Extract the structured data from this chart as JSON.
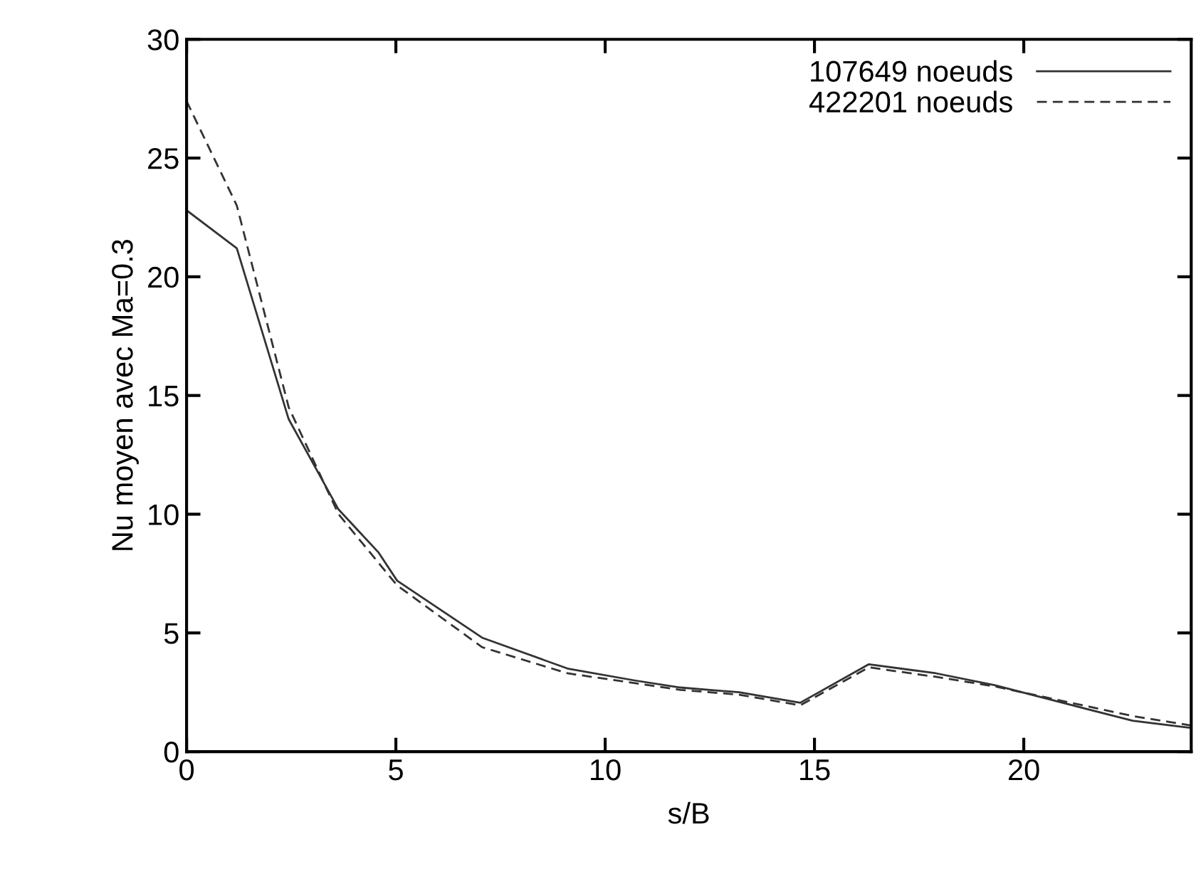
{
  "chart_data": {
    "type": "line",
    "xlabel": "s/B",
    "ylabel": "Nu moyen avec Ma=0.3",
    "xlim": [
      0,
      24
    ],
    "ylim": [
      0,
      30
    ],
    "xticks": [
      0,
      5,
      10,
      15,
      20
    ],
    "yticks": [
      0,
      5,
      10,
      15,
      20,
      25,
      30
    ],
    "grid": false,
    "legend": "top right",
    "marker": "none",
    "series": [
      {
        "name": "107649 noeuds",
        "color": "#333333",
        "line_style": "solid",
        "x": [
          0,
          1.2,
          2.44,
          3.63,
          4.58,
          5.03,
          7.06,
          9.1,
          10.7,
          11.8,
          13.2,
          14.66,
          16.3,
          17.9,
          19.3,
          22.6,
          24
        ],
        "values": [
          22.8,
          21.2,
          14.0,
          10.2,
          8.4,
          7.2,
          4.8,
          3.5,
          3.0,
          2.7,
          2.5,
          2.06,
          3.68,
          3.3,
          2.8,
          1.3,
          1.0
        ]
      },
      {
        "name": "422201 noeuds",
        "color": "#333333",
        "line_style": "dashed",
        "x": [
          0,
          1.2,
          2.44,
          3.63,
          5.03,
          7.06,
          9.1,
          11.8,
          13.2,
          14.66,
          16.3,
          17.9,
          19.3,
          22.6,
          24
        ],
        "values": [
          27.4,
          23.0,
          14.5,
          10.0,
          7.0,
          4.4,
          3.3,
          2.6,
          2.4,
          1.95,
          3.55,
          3.15,
          2.75,
          1.5,
          1.1
        ]
      }
    ]
  }
}
